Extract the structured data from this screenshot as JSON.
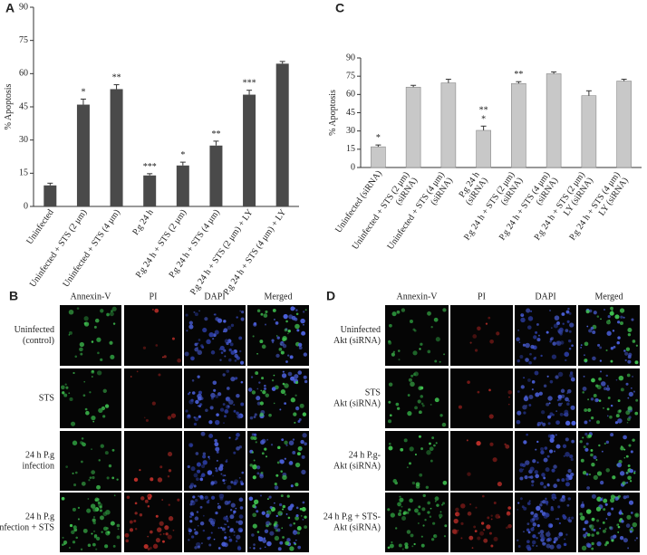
{
  "chart_data": [
    {
      "type": "bar",
      "panel": "A",
      "ylabel": "% Apoptosis",
      "color": "#4a4a4a",
      "categories": [
        "Uninfected",
        "Uninfected + STS (2 μm)",
        "Uninfected + STS (4 μm)",
        "P.g 24 h",
        "P.g 24 h + STS (2 μm)",
        "P.g 24 h + STS (4 μm)",
        "P.g 24 h + STS (2 μm) + LY",
        "P.g 24 h + STS (4 μm) + LY"
      ],
      "values": [
        9.5,
        46,
        53,
        14,
        18.5,
        27.5,
        50.5,
        64.5
      ],
      "errors": [
        1,
        2.5,
        2,
        0.8,
        1.5,
        2,
        2,
        1
      ],
      "annotations": [
        null,
        [
          "*"
        ],
        [
          "**"
        ],
        [
          "***"
        ],
        [
          "*"
        ],
        [
          "**"
        ],
        [
          "***"
        ],
        null
      ],
      "ylim": [
        0,
        90
      ],
      "yticks": [
        0,
        15,
        30,
        45,
        60,
        75,
        90
      ]
    },
    {
      "type": "bar",
      "panel": "C",
      "ylabel": "% Apoptosis",
      "color": "#c8c8c8",
      "categories": [
        [
          "Uninfected (siRNA)"
        ],
        [
          "Uninfected + STS (2 μm)",
          "(siRNA)"
        ],
        [
          "Uninfected + STS (4 μm)",
          "(siRNA)"
        ],
        [
          "P.g 24 h",
          "(siRNA)"
        ],
        [
          "P.g 24 h + STS (2 μm)",
          "(siRNA)"
        ],
        [
          "P.g 24 h + STS (4 μm)",
          "(siRNA)"
        ],
        [
          "P.g 24 h + STS (2 μm)",
          "LY (siRNA)"
        ],
        [
          "P.g 24 h + STS (4 μm)",
          "LY (siRNA)"
        ]
      ],
      "values": [
        17,
        66,
        69.5,
        30.5,
        69,
        77,
        59,
        71
      ],
      "errors": [
        1.5,
        1.5,
        3,
        3.5,
        1.5,
        1.5,
        4,
        1.5
      ],
      "annotations": [
        [
          "*"
        ],
        null,
        null,
        [
          "**",
          "*"
        ],
        [
          "**"
        ],
        null,
        null,
        null
      ],
      "ylim": [
        0,
        90
      ],
      "yticks": [
        0,
        15,
        30,
        45,
        60,
        75,
        90
      ]
    }
  ],
  "image_panels": [
    {
      "panel": "B",
      "columns": [
        "Annexin-V",
        "PI",
        "DAPI",
        "Merged"
      ],
      "rows": [
        [
          "Uninfected",
          "(control)"
        ],
        [
          "STS"
        ],
        [
          "24 h P.g",
          "infection"
        ],
        [
          "24 h P.g",
          "infection + STS"
        ]
      ]
    },
    {
      "panel": "D",
      "columns": [
        "Annexin-V",
        "PI",
        "DAPI",
        "Merged"
      ],
      "rows": [
        [
          "Uninfected",
          "Akt (siRNA)"
        ],
        [
          "STS",
          "Akt (siRNA)"
        ],
        [
          "24 h P.g-",
          "Akt (siRNA)"
        ],
        [
          "24 h P.g + STS-",
          "Akt (siRNA)"
        ]
      ]
    }
  ]
}
